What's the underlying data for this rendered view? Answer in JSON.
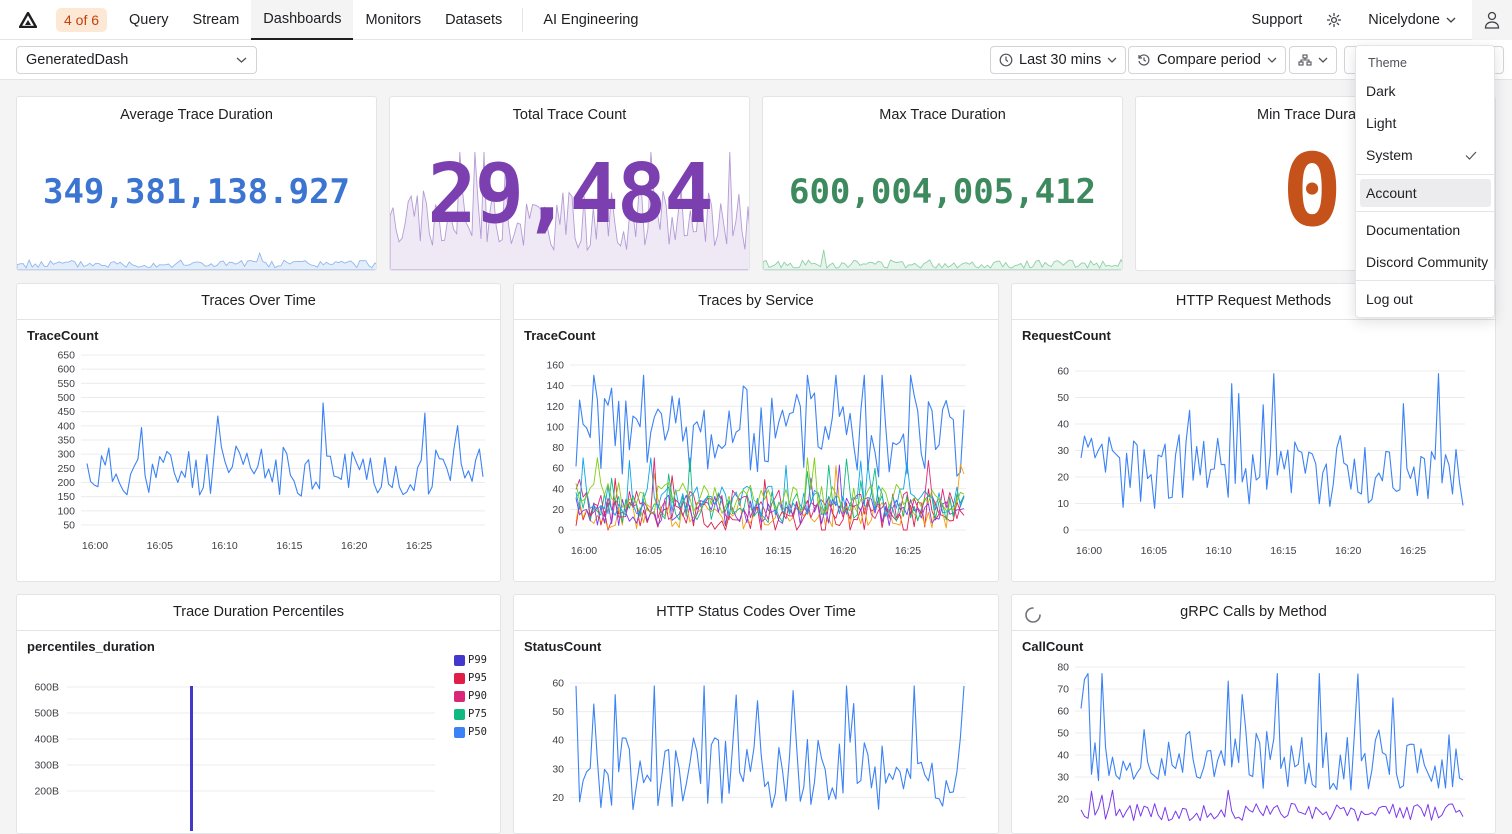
{
  "nav": {
    "counter": "4 of 6",
    "items": [
      "Query",
      "Stream",
      "Dashboards",
      "Monitors",
      "Datasets"
    ],
    "ai": "AI Engineering",
    "support": "Support",
    "user": "Nicelydone"
  },
  "toolbar": {
    "dashboard": "GeneratedDash",
    "time_range": "Last 30 mins",
    "compare": "Compare period"
  },
  "stats": [
    {
      "title": "Average Trace Duration",
      "value": "349,381,138.927",
      "color": "#3b74d1"
    },
    {
      "title": "Total Trace Count",
      "value": "29,484",
      "color": "#7b3fb0"
    },
    {
      "title": "Max Trace Duration",
      "value": "600,004,005,412",
      "color": "#3d8a5e"
    },
    {
      "title": "Min Trace Durat",
      "value": "0",
      "color": "#c4521a"
    }
  ],
  "charts": {
    "traces_over_time": {
      "title": "Traces Over Time",
      "sub": "TraceCount"
    },
    "traces_by_service": {
      "title": "Traces by Service",
      "sub": "TraceCount"
    },
    "http_methods": {
      "title": "HTTP Request Methods",
      "sub": "RequestCount"
    },
    "duration_percentiles": {
      "title": "Trace Duration Percentiles",
      "sub": "percentiles_duration"
    },
    "http_status": {
      "title": "HTTP Status Codes Over Time",
      "sub": "StatusCount"
    },
    "grpc_calls": {
      "title": "gRPC Calls by Method",
      "sub": "CallCount"
    }
  },
  "chart_data": [
    {
      "type": "line",
      "title": "Traces Over Time",
      "ylabel": "TraceCount",
      "x": [
        "16:00",
        "16:05",
        "16:10",
        "16:15",
        "16:20",
        "16:25"
      ],
      "yticks": [
        50,
        100,
        150,
        200,
        250,
        300,
        350,
        400,
        450,
        500,
        550,
        600,
        650
      ],
      "ylim": [
        50,
        650
      ]
    },
    {
      "type": "line",
      "title": "Traces by Service",
      "ylabel": "TraceCount",
      "x": [
        "16:00",
        "16:05",
        "16:10",
        "16:15",
        "16:20",
        "16:25"
      ],
      "yticks": [
        0,
        20,
        40,
        60,
        80,
        100,
        120,
        140,
        160
      ],
      "ylim": [
        0,
        160
      ]
    },
    {
      "type": "line",
      "title": "HTTP Request Methods",
      "ylabel": "RequestCount",
      "x": [
        "16:00",
        "16:05",
        "16:10",
        "16:15",
        "16:20",
        "16:25"
      ],
      "yticks": [
        0,
        10,
        20,
        30,
        40,
        50,
        60
      ],
      "ylim": [
        0,
        60
      ]
    },
    {
      "type": "bar",
      "title": "Trace Duration Percentiles",
      "ylabel": "percentiles_duration",
      "yticks": [
        "200B",
        "300B",
        "400B",
        "500B",
        "600B"
      ],
      "legend": [
        "P99",
        "P95",
        "P90",
        "P75",
        "P50"
      ],
      "legend_colors": [
        "#4338ca",
        "#e11d48",
        "#db2777",
        "#10b981",
        "#3b82f6"
      ]
    },
    {
      "type": "line",
      "title": "HTTP Status Codes Over Time",
      "ylabel": "StatusCount",
      "yticks": [
        20,
        30,
        40,
        50,
        60
      ],
      "ylim": [
        10,
        60
      ]
    },
    {
      "type": "line",
      "title": "gRPC Calls by Method",
      "ylabel": "CallCount",
      "yticks": [
        20,
        30,
        40,
        50,
        60,
        70,
        80
      ],
      "ylim": [
        20,
        80
      ]
    }
  ],
  "menu": {
    "theme_header": "Theme",
    "items": [
      "Dark",
      "Light",
      "System",
      "Account",
      "Documentation",
      "Discord Community",
      "Log out"
    ]
  }
}
